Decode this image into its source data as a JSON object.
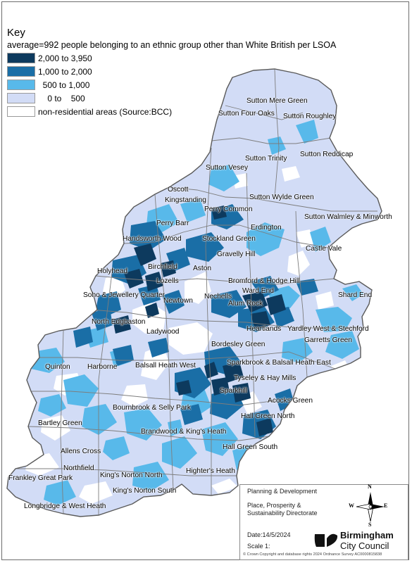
{
  "key": {
    "title": "Key",
    "subtitle": "average=992 people belonging to an ethnic group other than White British per LSOA",
    "items": [
      {
        "label": "2,000 to 3,950",
        "color": "#0d3a5e"
      },
      {
        "label": "1,000 to 2,000",
        "color": "#1a6ea6"
      },
      {
        "label": "  500 to 1,000",
        "color": "#58b9ea"
      },
      {
        "label": "    0 to    500",
        "color": "#d2dcf6"
      },
      {
        "label": "non-residential areas (Source:BCC)",
        "color": "#ffffff"
      }
    ]
  },
  "places": [
    "Sutton Mere Green",
    "Sutton Four Oaks",
    "Sutton Roughley",
    "Sutton Trinity",
    "Sutton Reddicap",
    "Sutton Vesey",
    "Oscott",
    "Kingstanding",
    "Sutton Wylde Green",
    "Perry Common",
    "Sutton Walmley & Minworth",
    "Perry Barr",
    "Erdington",
    "Handsworth Wood",
    "Stockland Green",
    "Castle Vale",
    "Gravelly Hill",
    "Birchfield",
    "Aston",
    "Holyhead",
    "Lozells",
    "Bromford & Hodge Hill",
    "Ward End",
    "Shard End",
    "Soho & Jewellery Quarter",
    "Newtown",
    "Nechells",
    "Alum Rock",
    "North Edgbaston",
    "Heartlands",
    "Ladywood",
    "Yardley West & Stechford",
    "Garretts Green",
    "Bordesley Green",
    "Quinton",
    "Harborne",
    "Balsall Heath West",
    "Sparkbrook & Balsall Heath East",
    "Tyseley & Hay Mills",
    "Sparkhill",
    "Acocks Green",
    "Bournbrook & Selly Park",
    "Hall Green North",
    "Bartley Green",
    "Brandwood & King's Heath",
    "Hall Green South",
    "Allens Cross",
    "Northfield",
    "Frankley Great Park",
    "King's Norton North",
    "Highter's Heath",
    "King's Norton South",
    "Longbridge & West Heath"
  ],
  "info": {
    "department": "Planning & Development",
    "directorate_line1": "Place, Prosperity &",
    "directorate_line2": "Sustainability Directorate",
    "date": "Date:14/5/2024",
    "scale": "Scale  1:",
    "org_line1": "Birmingham",
    "org_line2": "City Council",
    "copyright": "© Crown Copyright and database rights 2024 Ordnance Survey AC0000815838"
  },
  "compass": {
    "n": "N",
    "s": "S",
    "e": "E",
    "w": "W"
  }
}
